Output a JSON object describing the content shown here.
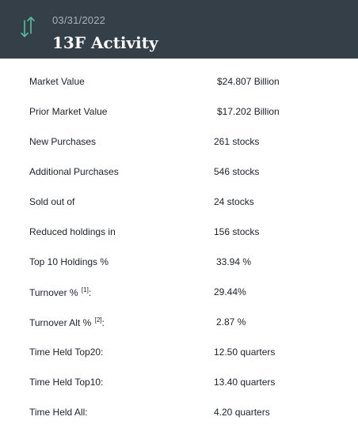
{
  "header": {
    "date": "03/31/2022",
    "title": "13F Activity",
    "icon": "sort-arrows-icon",
    "icon_color": "#4fc3a1",
    "background": "#343f48"
  },
  "rows": [
    {
      "label": "Market Value",
      "value": "$24.807 Billion"
    },
    {
      "label": "Prior Market Value",
      "value": "$17.202 Billion"
    },
    {
      "label": "New Purchases",
      "value": "261 stocks"
    },
    {
      "label": "Additional Purchases",
      "value": "546 stocks"
    },
    {
      "label": "Sold out of",
      "value": "24 stocks"
    },
    {
      "label": "Reduced holdings in",
      "value": "156 stocks"
    },
    {
      "label": "Top 10 Holdings %",
      "value": "33.94 %"
    },
    {
      "label": "Turnover %",
      "sup": "[1]",
      "suffix": ":",
      "value": "29.44%"
    },
    {
      "label": "Turnover Alt %",
      "sup": "[2]",
      "suffix": ":",
      "value": "2.87 %"
    },
    {
      "label": "Time Held Top20:",
      "value": "12.50 quarters"
    },
    {
      "label": "Time Held Top10:",
      "value": "13.40 quarters"
    },
    {
      "label": "Time Held All:",
      "value": "4.20 quarters"
    }
  ]
}
